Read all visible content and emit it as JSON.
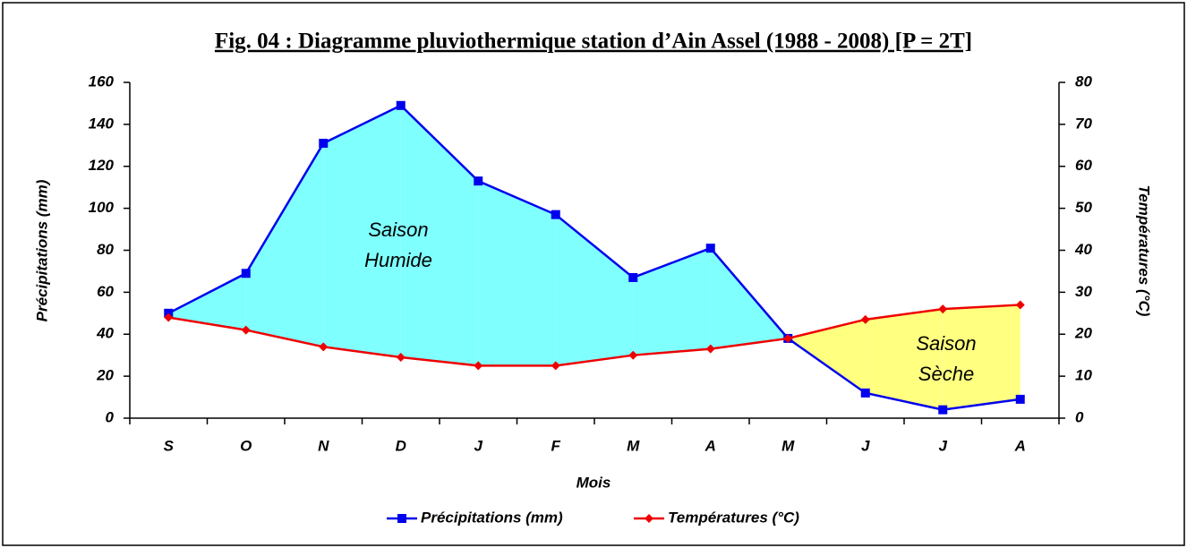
{
  "chart_data": {
    "type": "line",
    "title": "Fig. 04 : Diagramme pluviothermique station d’Ain Assel (1988 - 2008) [P = 2T]",
    "x_label": "Mois",
    "y_label": "Précipitations (mm)",
    "y2_label": "Températures (°C)",
    "categories": [
      "S",
      "O",
      "N",
      "D",
      "J",
      "F",
      "M",
      "A",
      "M",
      "J",
      "J",
      "A"
    ],
    "series": [
      {
        "name": "Précipitations (mm)",
        "color": "#0000ee",
        "values": [
          50,
          69,
          131,
          149,
          113,
          97,
          67,
          81,
          38,
          12,
          4,
          9
        ]
      },
      {
        "name": "Températures (°C)",
        "color": "#ee0000",
        "axis": "y2",
        "values": [
          24,
          21,
          17,
          14.5,
          12.5,
          12.5,
          15,
          16.5,
          19,
          23.5,
          26,
          27
        ]
      }
    ],
    "ylim": [
      0,
      160
    ],
    "yticks": [
      0,
      20,
      40,
      60,
      80,
      100,
      120,
      140,
      160
    ],
    "y2lim": [
      0,
      80
    ],
    "y2ticks": [
      0,
      10,
      20,
      30,
      40,
      50,
      60,
      70,
      80
    ],
    "annotations": [
      [
        "Saison",
        "Humide"
      ],
      [
        "Saison",
        "Sèche"
      ]
    ],
    "humid_color": "#80ffff",
    "dry_color": "#ffff80",
    "legend": "bottom"
  }
}
